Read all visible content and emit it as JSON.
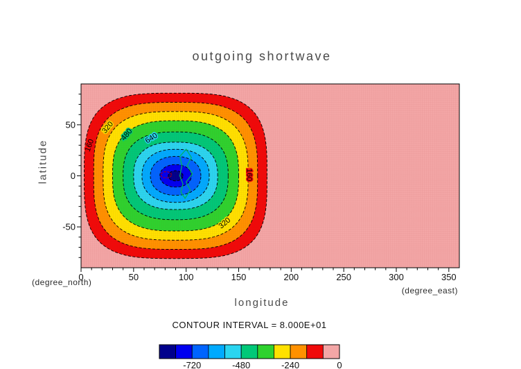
{
  "chart_data": {
    "type": "heatmap",
    "subtype": "filled_contour_map",
    "title": "outgoing shortwave",
    "xlabel": "longitude",
    "ylabel": "latitude",
    "x_unit": "(degree_east)",
    "y_unit": "(degree_north)",
    "xlim": [
      0,
      360
    ],
    "ylim": [
      -90,
      90
    ],
    "x_ticks": [
      0,
      50,
      100,
      150,
      200,
      250,
      300,
      350
    ],
    "y_ticks": [
      -50,
      0,
      50
    ],
    "grid": true,
    "contour_interval": 80,
    "contour_interval_label": "CONTOUR INTERVAL = 8.000E+01",
    "colorbar_range": [
      -880,
      0
    ],
    "colorbar_ticks": [
      -720,
      -480,
      -240,
      0
    ],
    "band_colors": [
      "#00008c",
      "#0000f0",
      "#0064ff",
      "#00aaff",
      "#2ad5f0",
      "#00c878",
      "#2ed22e",
      "#ffe100",
      "#ff9100",
      "#f00a0a",
      "#f3a6a6"
    ],
    "background_band_color": "#f3a6a6",
    "center": {
      "lon": 90,
      "lat": 0
    },
    "bands": [
      {
        "level": -80,
        "color": 9,
        "rx": 87,
        "ry": 81,
        "n": 3.4
      },
      {
        "level": -160,
        "color": 8,
        "rx": 78,
        "ry": 72,
        "n": 3.2
      },
      {
        "level": -240,
        "color": 7,
        "rx": 69,
        "ry": 63,
        "n": 3.0
      },
      {
        "level": -320,
        "color": 6,
        "rx": 60,
        "ry": 54,
        "n": 2.8
      },
      {
        "level": -400,
        "color": 5,
        "rx": 50,
        "ry": 43,
        "n": 2.6
      },
      {
        "level": -480,
        "color": 4,
        "rx": 40,
        "ry": 33,
        "n": 2.5
      },
      {
        "level": -560,
        "color": 3,
        "rx": 32,
        "ry": 26,
        "n": 2.3
      },
      {
        "level": -640,
        "color": 2,
        "rx": 24,
        "ry": 19,
        "n": 2.2
      },
      {
        "level": -720,
        "color": 1,
        "rx": 15,
        "ry": 11,
        "n": 2.1
      },
      {
        "level": -800,
        "color": 0,
        "rx": 7,
        "ry": 5,
        "n": 2.0
      }
    ],
    "contour_labels": [
      {
        "text": "160",
        "lon": 10,
        "lat": 29,
        "rot": -70,
        "halo": "#f00a0a"
      },
      {
        "text": "320",
        "lon": 27,
        "lat": 46,
        "rot": -50,
        "halo": "#ffe100"
      },
      {
        "text": "480",
        "lon": 45,
        "lat": 39,
        "rot": -50,
        "halo": "#00c878"
      },
      {
        "text": "640",
        "lon": 68,
        "lat": 35,
        "rot": -32,
        "halo": "#2ad5f0"
      },
      {
        "text": "160",
        "lon": 158,
        "lat": 1,
        "rot": 90,
        "halo": "#f00a0a"
      },
      {
        "text": "320",
        "lon": 138,
        "lat": -48,
        "rot": -40,
        "halo": "#ffe100"
      }
    ],
    "center_contour": {
      "color": "#00b464",
      "points": [
        [
          100,
          26
        ],
        [
          105,
          18
        ],
        [
          101,
          10
        ],
        [
          106,
          2
        ],
        [
          100,
          -6
        ],
        [
          104,
          -14
        ],
        [
          99,
          -22
        ],
        [
          95,
          -16
        ],
        [
          97,
          -8
        ],
        [
          94,
          0
        ],
        [
          96,
          10
        ],
        [
          94,
          19
        ]
      ]
    },
    "inner_mark": {
      "color": "#b40000",
      "lon": 81,
      "lat": 1,
      "rx": 5,
      "ry": 3
    }
  }
}
